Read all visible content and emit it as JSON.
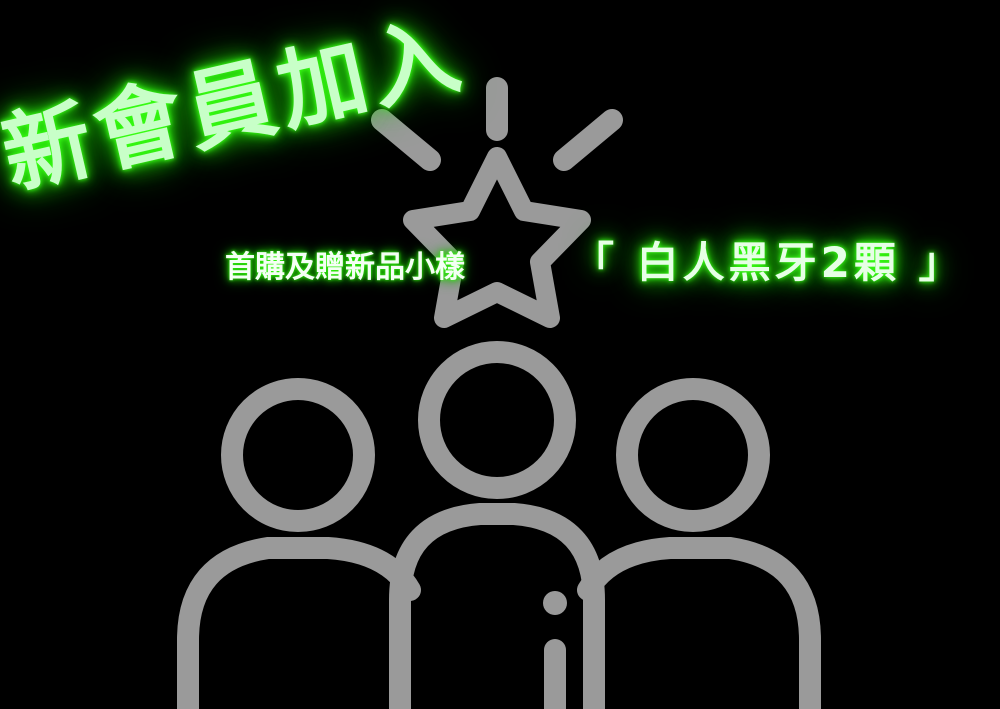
{
  "banner": {
    "headline": "新會員加入",
    "subline": "首購及贈新品小樣",
    "highlight": "「 白人黑牙2顆 」"
  },
  "colors": {
    "background": "#000000",
    "neon_green": "#39ff14",
    "icon_gray": "#9a9a9a"
  },
  "icons": [
    "star-icon",
    "group-of-people-icon"
  ]
}
